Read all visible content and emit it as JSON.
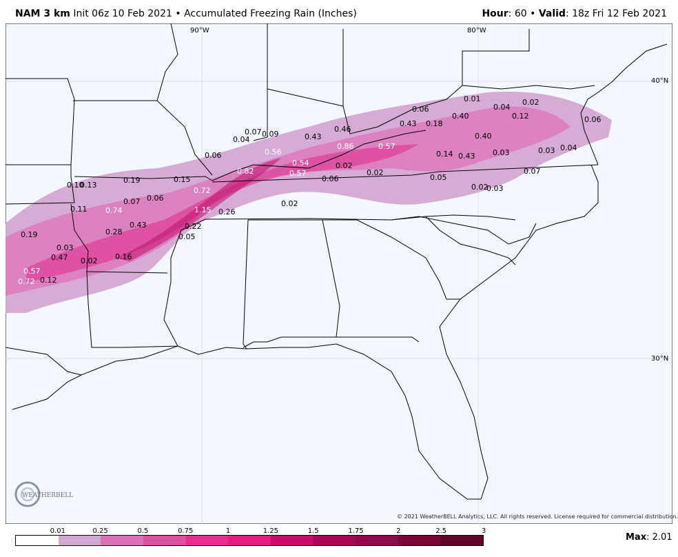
{
  "header": {
    "model": "NAM 3 km",
    "init": "Init 06z 10 Feb 2021",
    "sep": "•",
    "product": "Accumulated Freezing Rain (Inches)",
    "hour_label": "Hour",
    "hour_value": ": 60",
    "valid_label": "Valid",
    "valid_value": ": 18z Fri 12 Feb 2021"
  },
  "map": {
    "background": "#f3f7ff",
    "gridlines": {
      "lon": [
        "90°W",
        "80°W"
      ],
      "lat": [
        "40°N",
        "30°N"
      ]
    },
    "point_values": [
      "0.01",
      "0.04",
      "0.02",
      "0.06",
      "0.40",
      "0.12",
      "0.06",
      "0.43",
      "0.18",
      "0.46",
      "0.07",
      "0.09",
      "0.04",
      "0.43",
      "0.40",
      "0.86",
      "0.57",
      "0.56",
      "0.14",
      "0.43",
      "0.03",
      "0.03",
      "0.04",
      "0.06",
      "0.54",
      "0.02",
      "0.82",
      "0.57",
      "0.02",
      "0.07",
      "0.06",
      "0.05",
      "0.02",
      "0.03",
      "0.10",
      "0.13",
      "0.19",
      "0.15",
      "0.72",
      "0.07",
      "0.06",
      "0.02",
      "0.11",
      "0.74",
      "1.15",
      "0.26",
      "0.43",
      "0.22",
      "0.28",
      "0.05",
      "0.19",
      "0.03",
      "0.47",
      "0.02",
      "0.16",
      "0.57",
      "0.72",
      "0.12"
    ]
  },
  "copyright": "© 2021 WeatherBELL Analytics, LLC. All rights reserved. License required for commercial distribution.",
  "logo_text": "WEATHERBELL",
  "colorbar": {
    "ticks": [
      "0.01",
      "0.25",
      "0.5",
      "0.75",
      "1",
      "1.25",
      "1.5",
      "1.75",
      "2",
      "2.5",
      "3"
    ],
    "colors": [
      "#ffffff",
      "#d4a8d4",
      "#e070b8",
      "#e0509e",
      "#e03090",
      "#e0207e",
      "#c0106a",
      "#a00a58",
      "#900848",
      "#780538",
      "#600428"
    ]
  },
  "max": {
    "label": "Max",
    "value": ": 2.01"
  }
}
